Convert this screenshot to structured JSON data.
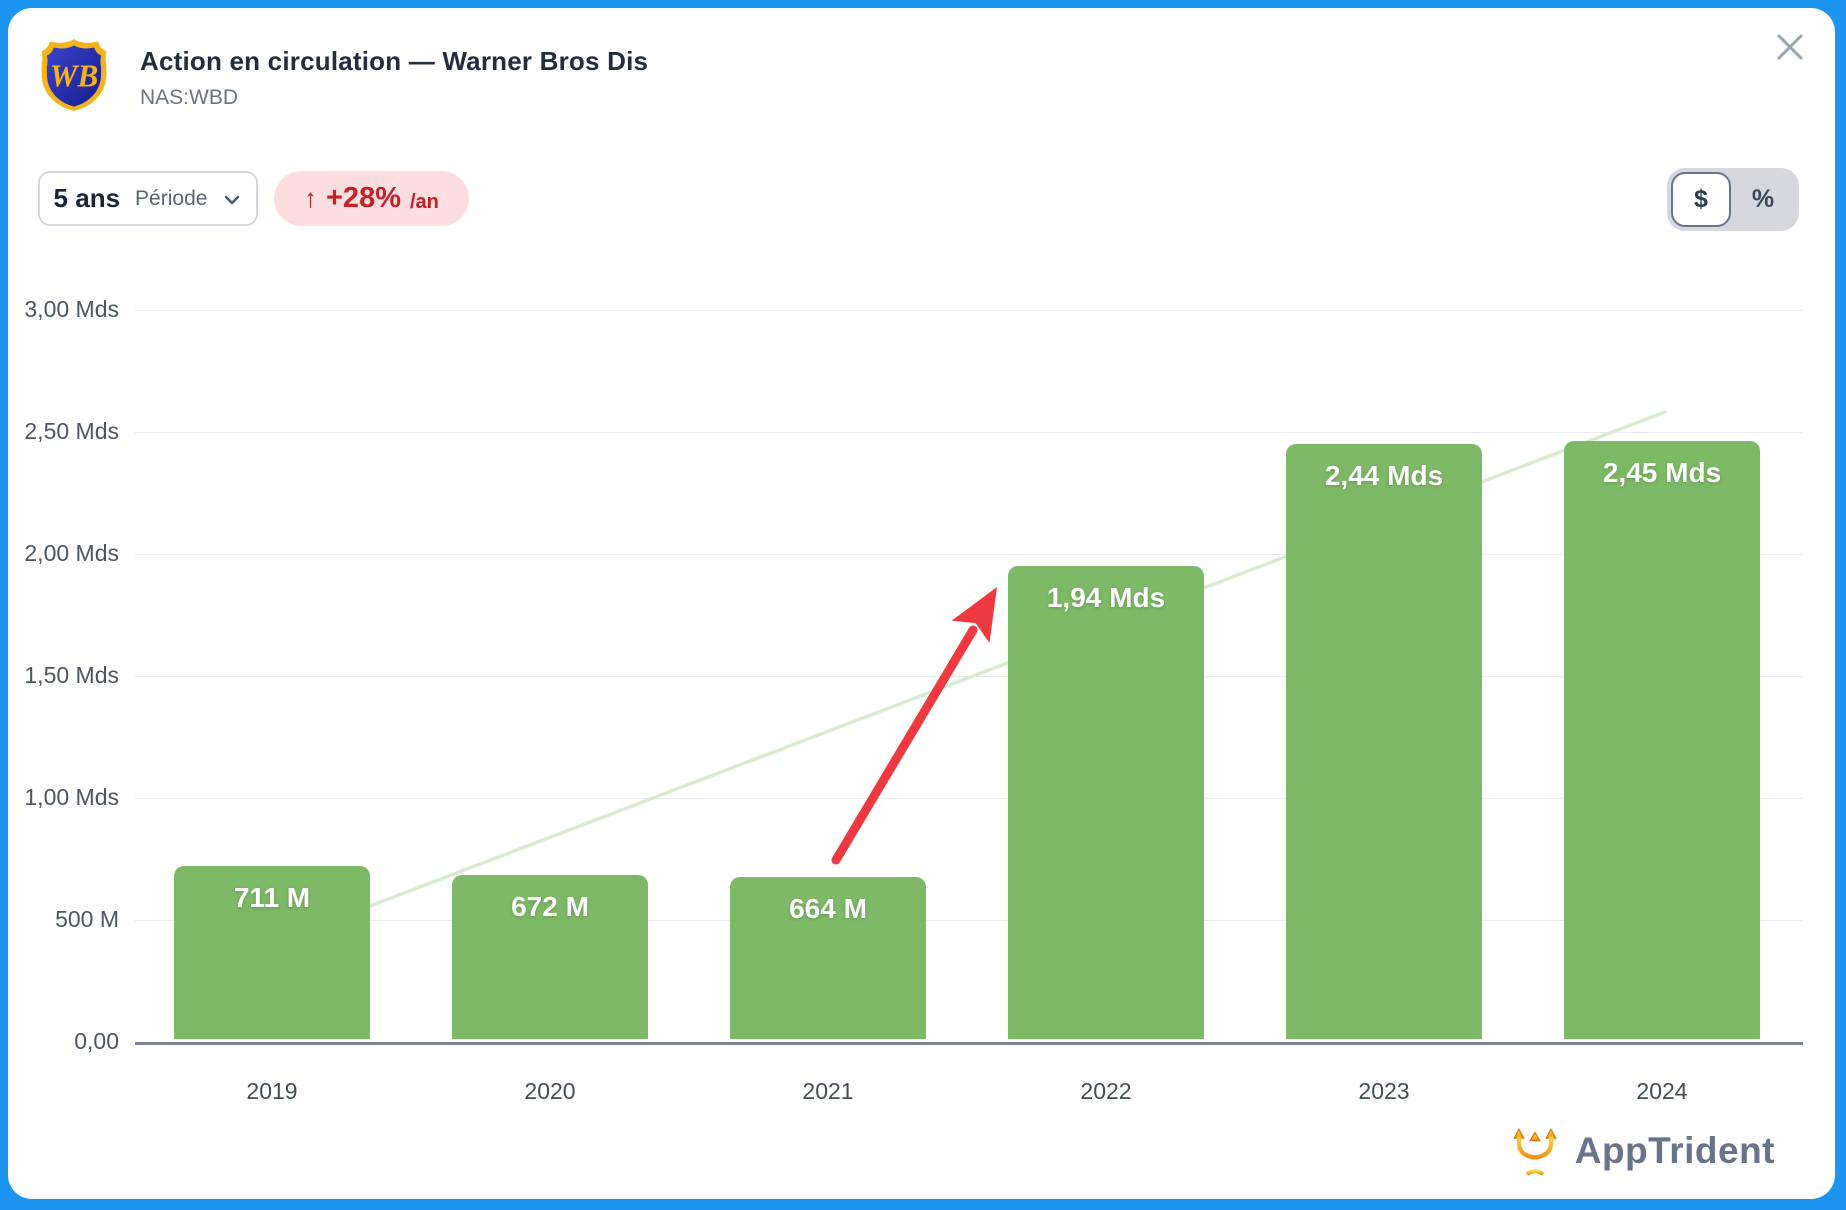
{
  "header": {
    "title": "Action en circulation — Warner Bros Dis",
    "ticker": "NAS:WBD",
    "logo": "warner-bros-shield"
  },
  "controls": {
    "period": {
      "value": "5 ans",
      "label": "Période"
    },
    "growth": {
      "arrow": "↑",
      "value": "+28%",
      "suffix": "/an"
    },
    "unit_toggle": {
      "options": [
        "$",
        "%"
      ],
      "selected": "$"
    }
  },
  "chart_data": {
    "type": "bar",
    "title": "Action en circulation — Warner Bros Dis (nombre d'actions)",
    "categories": [
      "2019",
      "2020",
      "2021",
      "2022",
      "2023",
      "2024"
    ],
    "values_millions": [
      711,
      672,
      664,
      1940,
      2440,
      2450
    ],
    "bar_labels": [
      "711 M",
      "672 M",
      "664 M",
      "1,94 Mds",
      "2,44 Mds",
      "2,45 Mds"
    ],
    "y_ticks": [
      "3,00 Mds",
      "2,50 Mds",
      "2,00 Mds",
      "1,50 Mds",
      "1,00 Mds",
      "500 M",
      "0,00"
    ],
    "ylim_millions": [
      0,
      3000
    ],
    "grid": true,
    "legend": "none",
    "bar_color": "#7db966",
    "trend_line_color": "#d8ebd1",
    "annotation_arrow_color": "#ee3940",
    "growth_rate_label": "+28%/an"
  },
  "footer": {
    "brand": "AppTrident"
  }
}
